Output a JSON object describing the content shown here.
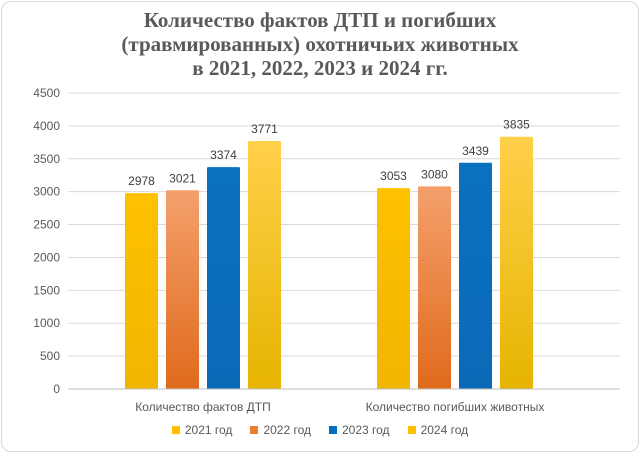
{
  "chart_data": {
    "type": "bar",
    "title": "Количество фактов ДТП и погибших (травмированных) охотничьих животных в 2021, 2022, 2023 и 2024 гг.",
    "title_lines": [
      "Количество фактов ДТП и погибших",
      "(травмированных) охотничьих животных",
      "в 2021, 2022, 2023 и 2024 гг."
    ],
    "categories": [
      "Количество фактов ДТП",
      "Количество погибших животных"
    ],
    "series": [
      {
        "name": "2021 год",
        "values": [
          2978,
          3053
        ],
        "color": "#ffc000"
      },
      {
        "name": "2022 год",
        "values": [
          3021,
          3080
        ],
        "color": "#ed7d31"
      },
      {
        "name": "2023 год",
        "values": [
          3374,
          3439
        ],
        "color": "#0070c0"
      },
      {
        "name": "2024 год",
        "values": [
          3771,
          3835
        ],
        "color": "#ffc000"
      }
    ],
    "yticks": [
      0,
      500,
      1000,
      1500,
      2000,
      2500,
      3000,
      3500,
      4000,
      4500
    ],
    "ylim": [
      0,
      4500
    ],
    "grid": true,
    "legend_position": "bottom",
    "data_labels": true
  }
}
